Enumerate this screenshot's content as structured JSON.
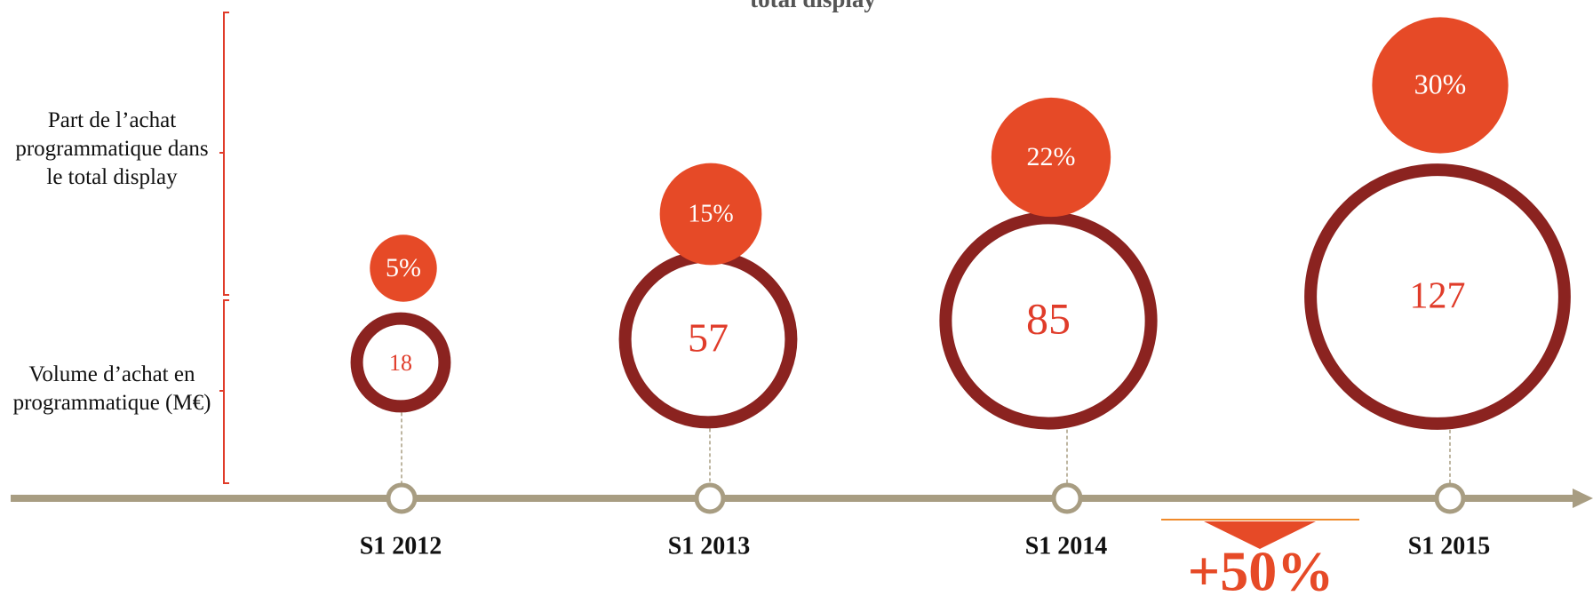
{
  "chart_data": {
    "type": "bubble-timeline",
    "title": "total display",
    "categories": [
      "S1 2012",
      "S1 2013",
      "S1 2014",
      "S1 2015"
    ],
    "series": [
      {
        "name": "Part de l’achat programmatique dans le total display",
        "color": "#e64a27",
        "values": [
          5,
          15,
          22,
          30
        ],
        "value_labels": [
          "5%",
          "15%",
          "22%",
          "30%"
        ]
      },
      {
        "name": "Volume d’achat en programmatique (M€)",
        "color": "#8b2320",
        "values": [
          18,
          57,
          85,
          127
        ]
      }
    ],
    "annotation": "+50%"
  }
}
